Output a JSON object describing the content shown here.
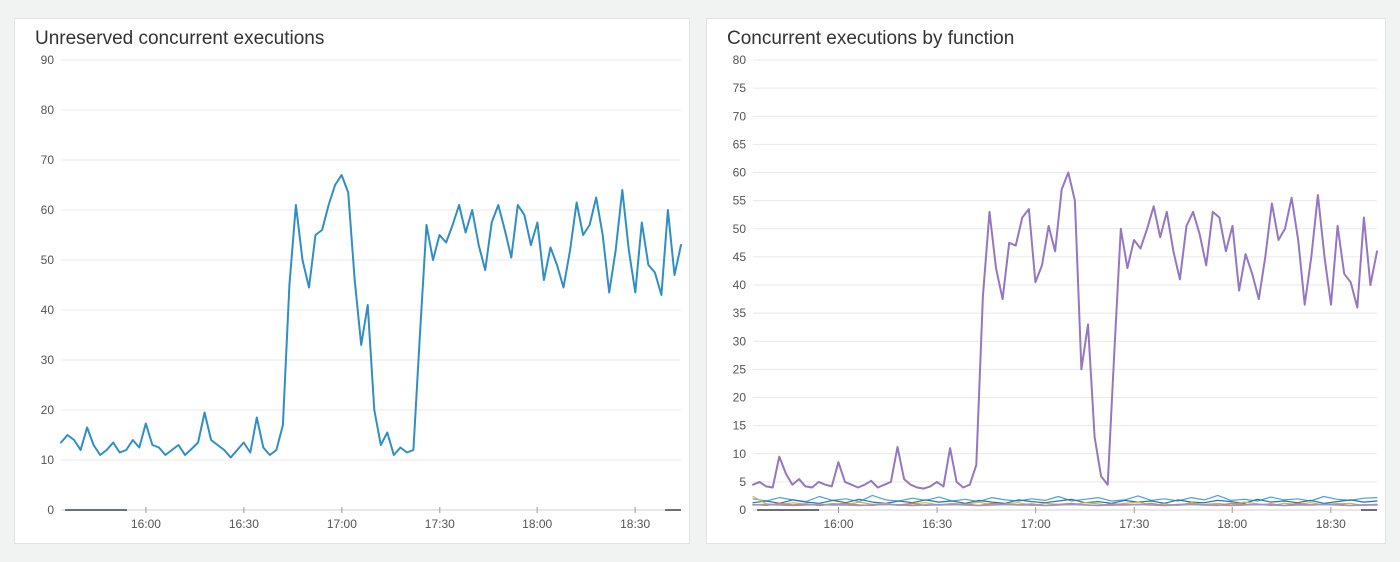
{
  "page": {
    "background": "#f1f2f2"
  },
  "chart_data": [
    {
      "type": "line",
      "title": "Unreserved concurrent executions",
      "xlabel": "",
      "ylabel": "",
      "ylim": [
        0,
        90
      ],
      "ytick_step": 10,
      "grid": true,
      "legend": "none",
      "x_start": "15:34",
      "x_end": "18:44",
      "x_ticks": [
        {
          "label": "16:00",
          "f": 0.137
        },
        {
          "label": "16:30",
          "f": 0.295
        },
        {
          "label": "17:00",
          "f": 0.453
        },
        {
          "label": "17:30",
          "f": 0.611
        },
        {
          "label": "18:00",
          "f": 0.768
        },
        {
          "label": "18:30",
          "f": 0.926
        }
      ],
      "series": [
        {
          "name": "unreserved-concurrent-executions",
          "color": "#2f8fc4",
          "width": 2,
          "values": [
            13.5,
            15,
            14,
            12,
            16.5,
            13,
            11,
            12,
            13.5,
            11.5,
            12,
            14,
            12.5,
            17.3,
            13,
            12.5,
            11,
            12,
            13,
            11,
            12.2,
            13.5,
            19.5,
            14,
            13,
            12,
            10.5,
            12,
            13.5,
            11.5,
            18.5,
            12.5,
            11,
            12,
            17,
            45,
            61,
            50,
            44.5,
            55,
            56,
            61,
            65,
            67,
            63.5,
            46,
            33,
            41,
            20,
            13,
            15.5,
            11,
            12.5,
            11.5,
            12,
            35,
            57,
            50,
            55,
            53.5,
            57,
            61,
            55.5,
            60,
            53,
            48,
            57.5,
            61,
            56,
            50.5,
            61,
            59,
            53,
            57.5,
            46,
            52.5,
            49,
            44.5,
            52,
            61.5,
            55,
            57,
            62.5,
            55,
            43.5,
            52,
            64,
            52,
            43.5,
            57.5,
            49,
            47.5,
            43,
            60,
            47,
            53
          ]
        }
      ]
    },
    {
      "type": "line",
      "title": "Concurrent executions by function",
      "xlabel": "",
      "ylabel": "",
      "ylim": [
        0,
        80
      ],
      "ytick_step": 5,
      "grid": true,
      "legend": "none",
      "x_start": "15:34",
      "x_end": "18:44",
      "x_ticks": [
        {
          "label": "16:00",
          "f": 0.137
        },
        {
          "label": "16:30",
          "f": 0.295
        },
        {
          "label": "17:00",
          "f": 0.453
        },
        {
          "label": "17:30",
          "f": 0.611
        },
        {
          "label": "18:00",
          "f": 0.768
        },
        {
          "label": "18:30",
          "f": 0.926
        }
      ],
      "series": [
        {
          "name": "function-purple",
          "color": "#9577c1",
          "width": 2,
          "values": [
            4.5,
            5,
            4.2,
            4,
            9.5,
            6.5,
            4.5,
            5.5,
            4.2,
            4,
            5,
            4.5,
            4.2,
            8.5,
            5,
            4.5,
            4,
            4.5,
            5.2,
            4,
            4.5,
            5,
            11.2,
            5.5,
            4.5,
            4,
            3.8,
            4.2,
            5,
            4.2,
            11,
            5,
            4,
            4.5,
            8,
            38,
            53,
            43,
            37.5,
            47.5,
            47,
            52,
            53.5,
            40.5,
            43.5,
            50.5,
            46,
            57,
            60,
            55,
            25,
            33,
            13,
            6,
            4.5,
            28,
            50,
            43,
            48,
            46.5,
            50,
            54,
            48.5,
            53,
            46,
            41,
            50.5,
            53,
            49,
            43.5,
            53,
            52,
            46,
            50.5,
            39,
            45.5,
            42,
            37.5,
            45,
            54.5,
            48,
            50,
            55.5,
            48,
            36.5,
            45,
            56,
            45,
            36.5,
            50.5,
            42,
            40.5,
            36,
            52,
            40,
            46
          ]
        },
        {
          "name": "function-sky",
          "color": "#4aa3d8",
          "width": 1.2,
          "values": [
            2.0,
            1.6,
            2.2,
            1.8,
            1.5,
            2.4,
            1.7,
            2.0,
            1.5,
            2.6,
            1.8,
            1.6,
            2.1,
            1.7,
            2.3,
            1.6,
            1.9,
            1.5,
            2.2,
            1.8,
            1.6,
            2.0,
            1.7,
            2.4,
            1.6,
            1.9,
            2.2,
            1.6,
            1.8,
            2.5,
            1.7,
            2.0,
            1.6,
            2.2,
            1.8,
            2.6,
            1.7,
            1.9,
            1.6,
            2.3,
            1.8,
            2.0,
            1.6,
            2.4,
            1.9,
            1.7,
            2.1,
            2.2
          ]
        },
        {
          "name": "function-blue",
          "color": "#1f77b4",
          "width": 1.2,
          "values": [
            1.3,
            1.6,
            1.2,
            1.8,
            1.4,
            1.2,
            1.7,
            1.3,
            1.9,
            1.4,
            1.2,
            1.6,
            1.3,
            1.8,
            1.4,
            1.6,
            1.2,
            1.7,
            1.4,
            1.2,
            1.8,
            1.5,
            1.3,
            1.6,
            1.9,
            1.3,
            1.5,
            1.2,
            1.7,
            1.4,
            1.6,
            1.2,
            1.8,
            1.4,
            1.3,
            1.7,
            1.5,
            1.2,
            1.9,
            1.4,
            1.6,
            1.3,
            1.7,
            1.2,
            1.5,
            1.8,
            1.4,
            1.6
          ]
        },
        {
          "name": "function-yellow",
          "color": "#d4b63c",
          "width": 1.2,
          "values": [
            2.4,
            1.1,
            0.9,
            1.3,
            1.0,
            0.8,
            1.2,
            0.9,
            1.4,
            1.0,
            1.2,
            0.8,
            1.1,
            1.3,
            0.9,
            1.2,
            1.0,
            1.4,
            0.9,
            1.1,
            1.3,
            0.8,
            1.2,
            1.0,
            0.9,
            1.3,
            1.1,
            0.8,
            1.2,
            1.4,
            0.9,
            1.1,
            0.8,
            1.3,
            1.0,
            1.2,
            0.9,
            1.4,
            1.1,
            0.8,
            1.2,
            1.0,
            1.3,
            0.9,
            1.1,
            1.2,
            0.8,
            1.0
          ]
        },
        {
          "name": "function-orange",
          "color": "#e0862e",
          "width": 1.2,
          "values": [
            1.0,
            0.8,
            1.2,
            0.9,
            1.1,
            0.8,
            1.0,
            1.2,
            0.9,
            0.8,
            1.1,
            0.9,
            1.2,
            0.8,
            1.0,
            0.9,
            1.1,
            0.8,
            1.2,
            1.0,
            0.9,
            1.1,
            0.8,
            1.0,
            1.2,
            0.9,
            0.8,
            1.1,
            1.0,
            0.9,
            1.2,
            0.8,
            1.0,
            1.1,
            0.9,
            0.8,
            1.2,
            1.0,
            0.9,
            1.1,
            0.8,
            1.2,
            0.9,
            1.0,
            1.1,
            0.8,
            0.9,
            1.0
          ]
        },
        {
          "name": "function-lavender",
          "color": "#9e91cf",
          "width": 1.6,
          "values": [
            0.9,
            1.0,
            0.9,
            0.8,
            0.9,
            1.0,
            0.9,
            0.9,
            0.8,
            0.9,
            1.0,
            0.9,
            0.8,
            0.9,
            0.9,
            1.0,
            0.9,
            0.8,
            0.9,
            1.0,
            0.9,
            0.9,
            0.8,
            0.9,
            1.0,
            0.9,
            0.8,
            0.9,
            0.9,
            1.0,
            0.9,
            0.8,
            0.9,
            1.0,
            0.9,
            0.9,
            0.8,
            0.9,
            1.0,
            0.9,
            0.8,
            0.9,
            0.9,
            1.0,
            0.9,
            0.8,
            0.9,
            0.9
          ]
        }
      ]
    }
  ]
}
